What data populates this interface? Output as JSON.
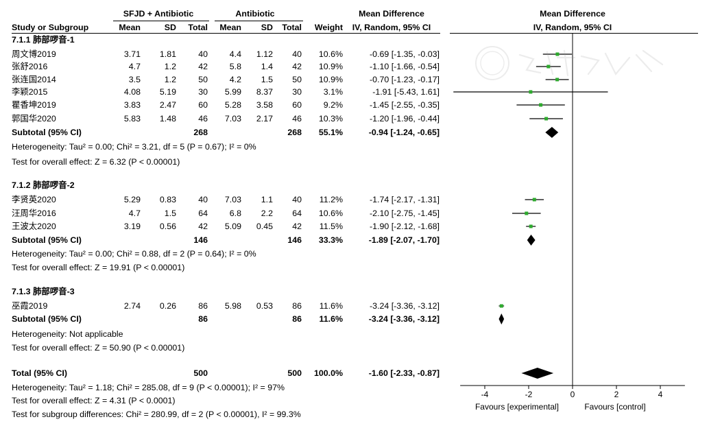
{
  "headers": {
    "group_exp": "SFJD + Antibiotic",
    "group_ctl": "Antibiotic",
    "md_left": "Mean Difference",
    "md_left_sub": "IV, Random, 95% CI",
    "md_right": "Mean Difference",
    "md_right_sub": "IV, Random, 95% CI",
    "study": "Study or Subgroup",
    "mean": "Mean",
    "sd": "SD",
    "total": "Total",
    "weight": "Weight"
  },
  "subgroups": [
    {
      "title": "7.1.1 肺部啰音-1",
      "studies": [
        {
          "name": "周文博2019",
          "m1": "3.71",
          "sd1": "1.81",
          "n1": "40",
          "m2": "4.4",
          "sd2": "1.12",
          "n2": "40",
          "weight": "10.6%",
          "ci": "-0.69 [-1.35, -0.03]"
        },
        {
          "name": "张舒2016",
          "m1": "4.7",
          "sd1": "1.2",
          "n1": "42",
          "m2": "5.8",
          "sd2": "1.4",
          "n2": "42",
          "weight": "10.9%",
          "ci": "-1.10 [-1.66, -0.54]"
        },
        {
          "name": "张连国2014",
          "m1": "3.5",
          "sd1": "1.2",
          "n1": "50",
          "m2": "4.2",
          "sd2": "1.5",
          "n2": "50",
          "weight": "10.9%",
          "ci": "-0.70 [-1.23, -0.17]"
        },
        {
          "name": "李颖2015",
          "m1": "4.08",
          "sd1": "5.19",
          "n1": "30",
          "m2": "5.99",
          "sd2": "8.37",
          "n2": "30",
          "weight": "3.1%",
          "ci": "-1.91 [-5.43, 1.61]"
        },
        {
          "name": "瞿香坤2019",
          "m1": "3.83",
          "sd1": "2.47",
          "n1": "60",
          "m2": "5.28",
          "sd2": "3.58",
          "n2": "60",
          "weight": "9.2%",
          "ci": "-1.45 [-2.55, -0.35]"
        },
        {
          "name": "郭国华2020",
          "m1": "5.83",
          "sd1": "1.48",
          "n1": "46",
          "m2": "7.03",
          "sd2": "2.17",
          "n2": "46",
          "weight": "10.3%",
          "ci": "-1.20 [-1.96, -0.44]"
        }
      ],
      "subtotal": {
        "label": "Subtotal (95% CI)",
        "n1": "268",
        "n2": "268",
        "weight": "55.1%",
        "ci": "-0.94 [-1.24, -0.65]"
      },
      "het": "Heterogeneity: Tau² = 0.00; Chi² = 3.21, df = 5 (P = 0.67); I² = 0%",
      "overall": "Test for overall effect: Z = 6.32 (P < 0.00001)"
    },
    {
      "title": "7.1.2 肺部啰音-2",
      "studies": [
        {
          "name": "李贤英2020",
          "m1": "5.29",
          "sd1": "0.83",
          "n1": "40",
          "m2": "7.03",
          "sd2": "1.1",
          "n2": "40",
          "weight": "11.2%",
          "ci": "-1.74 [-2.17, -1.31]"
        },
        {
          "name": "汪周华2016",
          "m1": "4.7",
          "sd1": "1.5",
          "n1": "64",
          "m2": "6.8",
          "sd2": "2.2",
          "n2": "64",
          "weight": "10.6%",
          "ci": "-2.10 [-2.75, -1.45]"
        },
        {
          "name": "王波太2020",
          "m1": "3.19",
          "sd1": "0.56",
          "n1": "42",
          "m2": "5.09",
          "sd2": "0.45",
          "n2": "42",
          "weight": "11.5%",
          "ci": "-1.90 [-2.12, -1.68]"
        }
      ],
      "subtotal": {
        "label": "Subtotal (95% CI)",
        "n1": "146",
        "n2": "146",
        "weight": "33.3%",
        "ci": "-1.89 [-2.07, -1.70]"
      },
      "het": "Heterogeneity: Tau² = 0.00; Chi² = 0.88, df = 2 (P = 0.64); I² = 0%",
      "overall": "Test for overall effect: Z = 19.91 (P < 0.00001)"
    },
    {
      "title": "7.1.3 肺部啰音-3",
      "studies": [
        {
          "name": "巫霞2019",
          "m1": "2.74",
          "sd1": "0.26",
          "n1": "86",
          "m2": "5.98",
          "sd2": "0.53",
          "n2": "86",
          "weight": "11.6%",
          "ci": "-3.24 [-3.36, -3.12]"
        }
      ],
      "subtotal": {
        "label": "Subtotal (95% CI)",
        "n1": "86",
        "n2": "86",
        "weight": "11.6%",
        "ci": "-3.24 [-3.36, -3.12]"
      },
      "het": "Heterogeneity: Not applicable",
      "overall": "Test for overall effect: Z = 50.90 (P < 0.00001)"
    }
  ],
  "total": {
    "label": "Total (95% CI)",
    "n1": "500",
    "n2": "500",
    "weight": "100.0%",
    "ci": "-1.60 [-2.33, -0.87]"
  },
  "footer": [
    "Heterogeneity: Tau² = 1.18; Chi² = 285.08, df = 9 (P < 0.00001); I² = 97%",
    "Test for overall effect: Z = 4.31 (P < 0.0001)",
    "Test for subgroup differences: Chi² = 280.99, df = 2 (P < 0.00001), I² = 99.3%"
  ],
  "axis": {
    "favours_left": "Favours [experimental]",
    "favours_right": "Favours [control]"
  },
  "colors": {
    "marker": "#2eaa2e",
    "line": "#000000"
  },
  "chart_data": {
    "type": "forest",
    "xlim": [
      -5.12,
      5.12
    ],
    "ticks": [
      -4,
      -2,
      0,
      2,
      4
    ],
    "tick_labels": [
      "-4",
      "-2",
      "0",
      "2",
      "4"
    ],
    "null_line": 0,
    "studies": [
      {
        "est": -0.69,
        "lo": -1.35,
        "hi": -0.03
      },
      {
        "est": -1.1,
        "lo": -1.66,
        "hi": -0.54
      },
      {
        "est": -0.7,
        "lo": -1.23,
        "hi": -0.17
      },
      {
        "est": -1.91,
        "lo": -5.43,
        "hi": 1.61
      },
      {
        "est": -1.45,
        "lo": -2.55,
        "hi": -0.35
      },
      {
        "est": -1.2,
        "lo": -1.96,
        "hi": -0.44
      },
      {
        "est": -1.74,
        "lo": -2.17,
        "hi": -1.31
      },
      {
        "est": -2.1,
        "lo": -2.75,
        "hi": -1.45
      },
      {
        "est": -1.9,
        "lo": -2.12,
        "hi": -1.68
      },
      {
        "est": -3.24,
        "lo": -3.36,
        "hi": -3.12
      }
    ],
    "diamonds": [
      {
        "est": -0.94,
        "lo": -1.24,
        "hi": -0.65
      },
      {
        "est": -1.89,
        "lo": -2.07,
        "hi": -1.7
      },
      {
        "est": -3.24,
        "lo": -3.36,
        "hi": -3.12
      },
      {
        "est": -1.6,
        "lo": -2.33,
        "hi": -0.87
      }
    ]
  }
}
